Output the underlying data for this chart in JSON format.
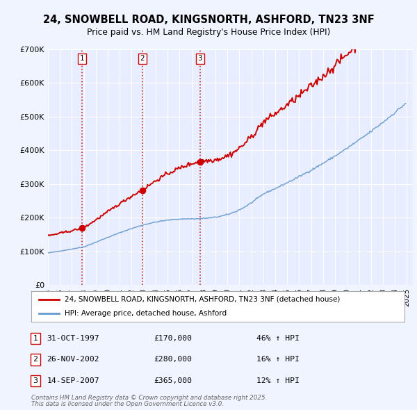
{
  "title": "24, SNOWBELL ROAD, KINGSNORTH, ASHFORD, TN23 3NF",
  "subtitle": "Price paid vs. HM Land Registry's House Price Index (HPI)",
  "background_color": "#f0f4ff",
  "plot_bg_color": "#e8eeff",
  "ylim": [
    0,
    700000
  ],
  "yticks": [
    0,
    100000,
    200000,
    300000,
    400000,
    500000,
    600000,
    700000
  ],
  "ytick_labels": [
    "£0",
    "£100K",
    "£200K",
    "£300K",
    "£400K",
    "£500K",
    "£600K",
    "£700K"
  ],
  "xmin": 1995,
  "xmax": 2025.5,
  "sale_dates": [
    1997.83,
    2002.9,
    2007.71
  ],
  "sale_prices": [
    170000,
    280000,
    365000
  ],
  "sale_labels": [
    "1",
    "2",
    "3"
  ],
  "sale_date_strs": [
    "31-OCT-1997",
    "26-NOV-2002",
    "14-SEP-2007"
  ],
  "sale_price_strs": [
    "£170,000",
    "£280,000",
    "£365,000"
  ],
  "sale_hpi_strs": [
    "46% ↑ HPI",
    "16% ↑ HPI",
    "12% ↑ HPI"
  ],
  "legend_line1": "24, SNOWBELL ROAD, KINGSNORTH, ASHFORD, TN23 3NF (detached house)",
  "legend_line2": "HPI: Average price, detached house, Ashford",
  "footer_line1": "Contains HM Land Registry data © Crown copyright and database right 2025.",
  "footer_line2": "This data is licensed under the Open Government Licence v3.0.",
  "red_color": "#cc0000",
  "blue_color": "#6699cc"
}
